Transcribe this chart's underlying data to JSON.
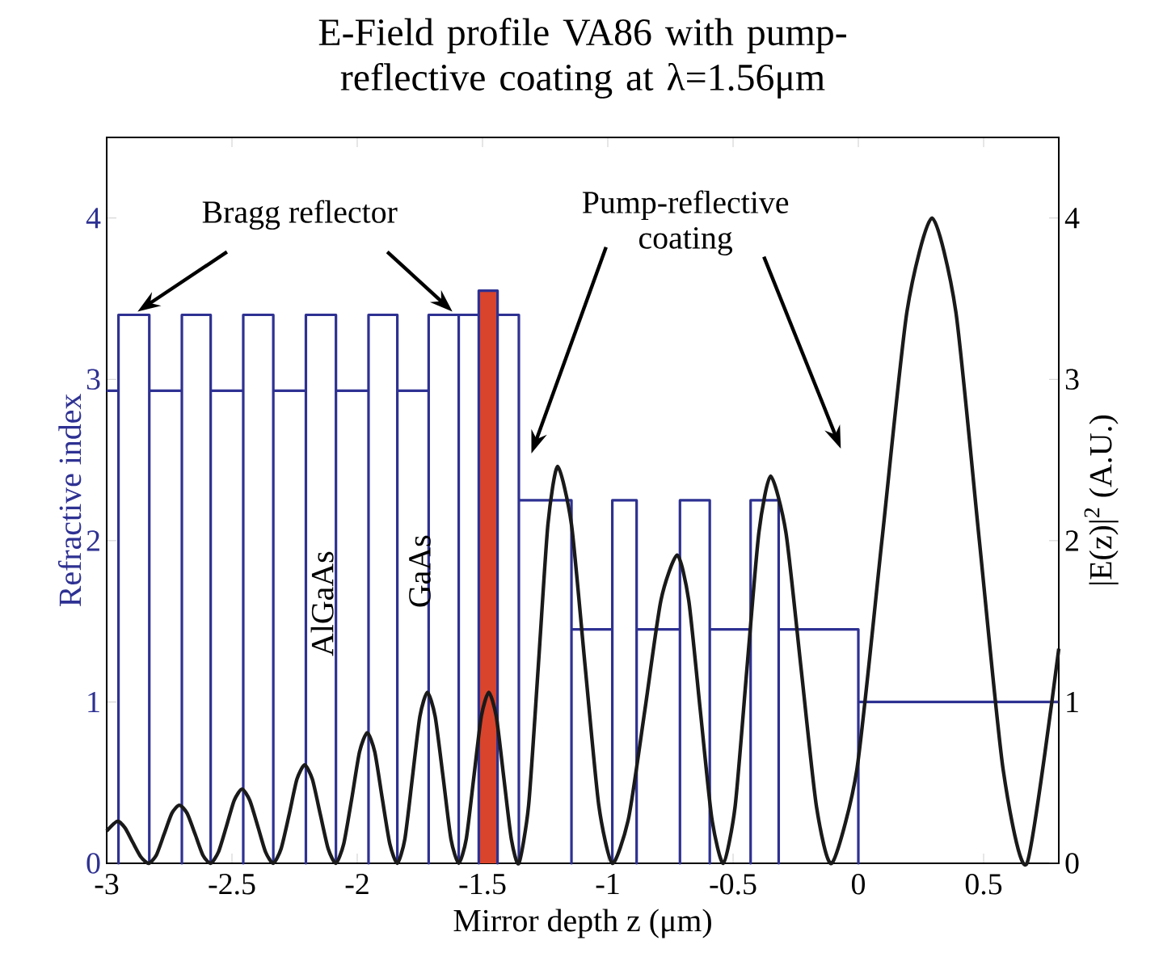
{
  "chart_data": {
    "type": "line",
    "title": "E-Field profile VA86 with pump-reflective coating at λ=1.56μm",
    "xlabel": "Mirror depth z (μm)",
    "ylabel": "Refractive index",
    "y2label": "|E(z)|$^{2}$ (A.U.)",
    "xlim": [
      -3,
      0.8
    ],
    "xticks": [
      -3,
      -2.5,
      -2,
      -1.5,
      -1,
      -0.5,
      0,
      0.5
    ],
    "ylim": [
      0,
      4.5
    ],
    "yticks": [
      0,
      1,
      2,
      3,
      4
    ],
    "y2lim": [
      0,
      4.5
    ],
    "y2ticks": [
      0,
      1,
      2,
      3,
      4
    ],
    "annotations": [
      {
        "text": "Bragg reflector",
        "x": -2.877,
        "y": 3.42
      },
      "Pump-reflective coating",
      "AlGaAs",
      "GaAs"
    ],
    "series": [
      {
        "type": "area",
        "color": "#d9442c",
        "x": [
          -1.515,
          -1.44
        ],
        "values": [
          3.55,
          3.55
        ]
      },
      {
        "type": "step",
        "color": "#2e3192",
        "x": [
          -3,
          -2.953,
          -2.953,
          -2.83,
          -2.83,
          -2.7,
          -2.7,
          -2.585,
          -2.585,
          -2.455,
          -2.455,
          -2.335,
          -2.335,
          -2.205,
          -2.205,
          -2.085,
          -2.085,
          -1.955,
          -1.955,
          -1.84,
          -1.84,
          -1.715,
          -1.715,
          -1.595,
          -1.595,
          -1.515,
          -1.515,
          -1.44,
          -1.44,
          -1.355,
          -1.355,
          -1.145,
          -1.145,
          -0.982,
          -0.982,
          -0.885,
          -0.885,
          -0.712,
          -0.712,
          -0.593,
          -0.593,
          -0.43,
          -0.43,
          -0.318,
          -0.318,
          0,
          0,
          0.8
        ],
        "values": [
          2.93,
          0,
          3.4,
          0,
          2.93,
          0,
          3.4,
          0,
          2.93,
          0,
          3.4,
          0,
          2.93,
          0,
          3.4,
          0,
          2.93,
          0,
          3.4,
          0,
          2.93,
          0,
          3.4,
          0,
          3.4,
          0,
          3.55,
          0,
          3.4,
          0,
          2.25,
          0,
          1.45,
          0,
          2.25,
          0,
          1.45,
          0,
          2.25,
          0,
          1.45,
          0,
          2.25,
          0,
          1.45,
          0,
          1.0,
          1.0
        ]
      },
      {
        "axis": "y2",
        "color": "#1a1a1a",
        "x": [
          -3.0,
          -2.958,
          -2.927,
          -2.896,
          -2.864,
          -2.833,
          -2.802,
          -2.771,
          -2.74,
          -2.71,
          -2.679,
          -2.647,
          -2.616,
          -2.585,
          -2.554,
          -2.522,
          -2.491,
          -2.46,
          -2.429,
          -2.397,
          -2.366,
          -2.335,
          -2.304,
          -2.272,
          -2.241,
          -2.21,
          -2.179,
          -2.147,
          -2.116,
          -2.085,
          -2.054,
          -2.022,
          -1.991,
          -1.96,
          -1.93,
          -1.9,
          -1.87,
          -1.84,
          -1.81,
          -1.78,
          -1.75,
          -1.72,
          -1.689,
          -1.657,
          -1.626,
          -1.595,
          -1.565,
          -1.535,
          -1.505,
          -1.475,
          -1.445,
          -1.415,
          -1.385,
          -1.355,
          -1.316,
          -1.277,
          -1.239,
          -1.2,
          -1.145,
          -1.091,
          -1.036,
          -0.982,
          -0.917,
          -0.852,
          -0.788,
          -0.723,
          -0.677,
          -0.631,
          -0.585,
          -0.539,
          -0.492,
          -0.445,
          -0.397,
          -0.35,
          -0.289,
          -0.228,
          -0.167,
          -0.106,
          -0.006,
          0.094,
          0.194,
          0.294,
          0.389,
          0.483,
          0.578,
          0.673,
          0.8
        ],
        "values": [
          0.2,
          0.26,
          0.22,
          0.13,
          0.04,
          0,
          0.05,
          0.18,
          0.31,
          0.36,
          0.31,
          0.18,
          0.05,
          0,
          0.07,
          0.23,
          0.39,
          0.46,
          0.39,
          0.23,
          0.07,
          0,
          0.09,
          0.3,
          0.52,
          0.61,
          0.52,
          0.3,
          0.09,
          0,
          0.12,
          0.4,
          0.69,
          0.81,
          0.69,
          0.4,
          0.12,
          0,
          0.15,
          0.53,
          0.91,
          1.06,
          0.91,
          0.53,
          0.15,
          0,
          0.15,
          0.53,
          0.91,
          1.06,
          0.91,
          0.53,
          0.15,
          0,
          0.36,
          1.23,
          2.1,
          2.46,
          2.1,
          1.23,
          0.36,
          0,
          0.28,
          0.95,
          1.63,
          1.91,
          1.63,
          0.95,
          0.28,
          0,
          0.35,
          1.2,
          2.05,
          2.4,
          2.05,
          1.2,
          0.35,
          0,
          0.58,
          2.0,
          3.42,
          4.0,
          3.42,
          2.0,
          0.58,
          0,
          1.33
        ]
      }
    ]
  }
}
